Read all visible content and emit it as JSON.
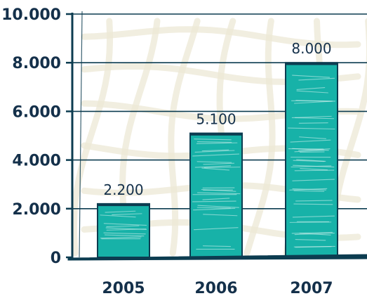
{
  "chart_data": {
    "type": "bar",
    "title": "",
    "xlabel": "",
    "ylabel": "",
    "categories": [
      "2005",
      "2006",
      "2007"
    ],
    "values": [
      2200,
      5100,
      8000
    ],
    "data_labels": [
      "2.200",
      "5.100",
      "8.000"
    ],
    "ylim": [
      0,
      10000
    ],
    "y_ticks": [
      0,
      2000,
      4000,
      6000,
      8000,
      10000
    ],
    "y_tick_labels": [
      "0",
      "2.000",
      "4.000",
      "6.000",
      "8.000",
      "10.000"
    ],
    "grid": true,
    "legend": "none",
    "style": "hand-drawn sketch with crosshatched background",
    "colors": {
      "bar_fill": "#17b2a8",
      "bar_stroke": "#0c3c50",
      "bar_highlight": "#d6f2ef",
      "axis": "#0c3c50",
      "text": "#14304a",
      "sketch_background": "#ece8d6"
    }
  }
}
